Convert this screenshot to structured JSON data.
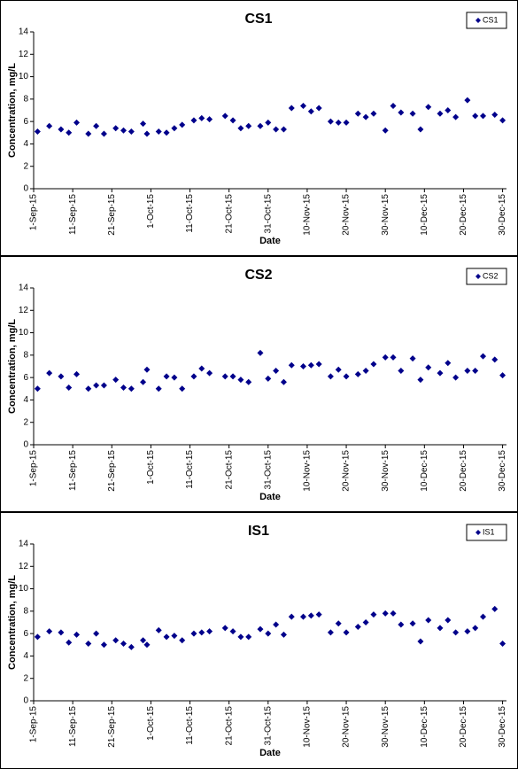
{
  "chart_data": [
    {
      "type": "scatter",
      "title": "CS1",
      "x_label": "Date",
      "y_label": "Concentration, mg/L",
      "legend": "upper right",
      "x": [
        "2015-09-02",
        "2015-09-05",
        "2015-09-08",
        "2015-09-10",
        "2015-09-12",
        "2015-09-15",
        "2015-09-17",
        "2015-09-19",
        "2015-09-22",
        "2015-09-24",
        "2015-09-26",
        "2015-09-29",
        "2015-09-30",
        "2015-10-03",
        "2015-10-05",
        "2015-10-07",
        "2015-10-09",
        "2015-10-12",
        "2015-10-14",
        "2015-10-16",
        "2015-10-20",
        "2015-10-22",
        "2015-10-24",
        "2015-10-26",
        "2015-10-29",
        "2015-10-31",
        "2015-11-02",
        "2015-11-04",
        "2015-11-06",
        "2015-11-09",
        "2015-11-11",
        "2015-11-13",
        "2015-11-16",
        "2015-11-18",
        "2015-11-20",
        "2015-11-23",
        "2015-11-25",
        "2015-11-27",
        "2015-11-30",
        "2015-12-02",
        "2015-12-04",
        "2015-12-07",
        "2015-12-09",
        "2015-12-11",
        "2015-12-14",
        "2015-12-16",
        "2015-12-18",
        "2015-12-21",
        "2015-12-23",
        "2015-12-25",
        "2015-12-28",
        "2015-12-30"
      ],
      "series": [
        {
          "name": "CS1",
          "color": "#00008b",
          "values": [
            5.1,
            5.6,
            5.3,
            5.0,
            5.9,
            4.9,
            5.6,
            4.9,
            5.4,
            5.2,
            5.1,
            5.8,
            4.9,
            5.1,
            5.0,
            5.4,
            5.7,
            6.1,
            6.3,
            6.2,
            6.5,
            6.1,
            5.4,
            5.6,
            5.6,
            5.9,
            5.3,
            5.3,
            7.2,
            7.4,
            6.9,
            7.2,
            6.0,
            5.9,
            5.9,
            6.7,
            6.4,
            6.7,
            5.2,
            7.4,
            6.8,
            6.7,
            5.3,
            7.3,
            6.7,
            7.0,
            6.4,
            7.9,
            6.5,
            6.5,
            6.6,
            6.1
          ]
        }
      ],
      "xlim": [
        "2015-09-01",
        "2015-12-31"
      ],
      "xticks": [
        {
          "value": "2015-09-01",
          "label": "1-Sep-15"
        },
        {
          "value": "2015-09-11",
          "label": "11-Sep-15"
        },
        {
          "value": "2015-09-21",
          "label": "21-Sep-15"
        },
        {
          "value": "2015-10-01",
          "label": "1-Oct-15"
        },
        {
          "value": "2015-10-11",
          "label": "11-Oct-15"
        },
        {
          "value": "2015-10-21",
          "label": "21-Oct-15"
        },
        {
          "value": "2015-10-31",
          "label": "31-Oct-15"
        },
        {
          "value": "2015-11-10",
          "label": "10-Nov-15"
        },
        {
          "value": "2015-11-20",
          "label": "20-Nov-15"
        },
        {
          "value": "2015-11-30",
          "label": "30-Nov-15"
        },
        {
          "value": "2015-12-10",
          "label": "10-Dec-15"
        },
        {
          "value": "2015-12-20",
          "label": "20-Dec-15"
        },
        {
          "value": "2015-12-30",
          "label": "30-Dec-15"
        }
      ],
      "ylim": [
        0,
        14
      ],
      "yticks": [
        0,
        2,
        4,
        6,
        8,
        10,
        12,
        14
      ]
    },
    {
      "type": "scatter",
      "title": "CS2",
      "x_label": "Date",
      "y_label": "Concentration, mg/L",
      "legend": "upper right",
      "x": [
        "2015-09-02",
        "2015-09-05",
        "2015-09-08",
        "2015-09-10",
        "2015-09-12",
        "2015-09-15",
        "2015-09-17",
        "2015-09-19",
        "2015-09-22",
        "2015-09-24",
        "2015-09-26",
        "2015-09-29",
        "2015-09-30",
        "2015-10-03",
        "2015-10-05",
        "2015-10-07",
        "2015-10-09",
        "2015-10-12",
        "2015-10-14",
        "2015-10-16",
        "2015-10-20",
        "2015-10-22",
        "2015-10-24",
        "2015-10-26",
        "2015-10-29",
        "2015-10-31",
        "2015-11-02",
        "2015-11-04",
        "2015-11-06",
        "2015-11-09",
        "2015-11-11",
        "2015-11-13",
        "2015-11-16",
        "2015-11-18",
        "2015-11-20",
        "2015-11-23",
        "2015-11-25",
        "2015-11-27",
        "2015-11-30",
        "2015-12-02",
        "2015-12-04",
        "2015-12-07",
        "2015-12-09",
        "2015-12-11",
        "2015-12-14",
        "2015-12-16",
        "2015-12-18",
        "2015-12-21",
        "2015-12-23",
        "2015-12-25",
        "2015-12-28",
        "2015-12-30"
      ],
      "series": [
        {
          "name": "CS2",
          "color": "#00008b",
          "values": [
            5.0,
            6.4,
            6.1,
            5.1,
            6.3,
            5.0,
            5.3,
            5.3,
            5.8,
            5.1,
            5.0,
            5.6,
            6.7,
            5.0,
            6.1,
            6.0,
            5.0,
            6.1,
            6.8,
            6.4,
            6.1,
            6.1,
            5.8,
            5.6,
            8.2,
            5.9,
            6.6,
            5.6,
            7.1,
            7.0,
            7.1,
            7.2,
            6.1,
            6.7,
            6.1,
            6.3,
            6.6,
            7.2,
            7.8,
            7.8,
            6.6,
            7.7,
            5.8,
            6.9,
            6.4,
            7.3,
            6.0,
            6.6,
            6.6,
            7.9,
            7.6,
            6.2
          ]
        }
      ],
      "xlim": [
        "2015-09-01",
        "2015-12-31"
      ],
      "xticks": [
        {
          "value": "2015-09-01",
          "label": "1-Sep-15"
        },
        {
          "value": "2015-09-11",
          "label": "11-Sep-15"
        },
        {
          "value": "2015-09-21",
          "label": "21-Sep-15"
        },
        {
          "value": "2015-10-01",
          "label": "1-Oct-15"
        },
        {
          "value": "2015-10-11",
          "label": "11-Oct-15"
        },
        {
          "value": "2015-10-21",
          "label": "21-Oct-15"
        },
        {
          "value": "2015-10-31",
          "label": "31-Oct-15"
        },
        {
          "value": "2015-11-10",
          "label": "10-Nov-15"
        },
        {
          "value": "2015-11-20",
          "label": "20-Nov-15"
        },
        {
          "value": "2015-11-30",
          "label": "30-Nov-15"
        },
        {
          "value": "2015-12-10",
          "label": "10-Dec-15"
        },
        {
          "value": "2015-12-20",
          "label": "20-Dec-15"
        },
        {
          "value": "2015-12-30",
          "label": "30-Dec-15"
        }
      ],
      "ylim": [
        0,
        14
      ],
      "yticks": [
        0,
        2,
        4,
        6,
        8,
        10,
        12,
        14
      ]
    },
    {
      "type": "scatter",
      "title": "IS1",
      "x_label": "Date",
      "y_label": "Concentration, mg/L",
      "legend": "upper right",
      "x": [
        "2015-09-02",
        "2015-09-05",
        "2015-09-08",
        "2015-09-10",
        "2015-09-12",
        "2015-09-15",
        "2015-09-17",
        "2015-09-19",
        "2015-09-22",
        "2015-09-24",
        "2015-09-26",
        "2015-09-29",
        "2015-09-30",
        "2015-10-03",
        "2015-10-05",
        "2015-10-07",
        "2015-10-09",
        "2015-10-12",
        "2015-10-14",
        "2015-10-16",
        "2015-10-20",
        "2015-10-22",
        "2015-10-24",
        "2015-10-26",
        "2015-10-29",
        "2015-10-31",
        "2015-11-02",
        "2015-11-04",
        "2015-11-06",
        "2015-11-09",
        "2015-11-11",
        "2015-11-13",
        "2015-11-16",
        "2015-11-18",
        "2015-11-20",
        "2015-11-23",
        "2015-11-25",
        "2015-11-27",
        "2015-11-30",
        "2015-12-02",
        "2015-12-04",
        "2015-12-07",
        "2015-12-09",
        "2015-12-11",
        "2015-12-14",
        "2015-12-16",
        "2015-12-18",
        "2015-12-21",
        "2015-12-23",
        "2015-12-25",
        "2015-12-28",
        "2015-12-30"
      ],
      "series": [
        {
          "name": "IS1",
          "color": "#00008b",
          "values": [
            5.7,
            6.2,
            6.1,
            5.2,
            5.9,
            5.1,
            6.0,
            5.0,
            5.4,
            5.1,
            4.8,
            5.4,
            5.0,
            6.3,
            5.7,
            5.8,
            5.4,
            6.0,
            6.1,
            6.2,
            6.5,
            6.2,
            5.7,
            5.7,
            6.4,
            6.0,
            6.8,
            5.9,
            7.5,
            7.5,
            7.6,
            7.7,
            6.1,
            6.9,
            6.1,
            6.6,
            7.0,
            7.7,
            7.8,
            7.8,
            6.8,
            6.9,
            5.3,
            7.2,
            6.5,
            7.2,
            6.1,
            6.2,
            6.5,
            7.5,
            8.2,
            5.1
          ]
        }
      ],
      "xlim": [
        "2015-09-01",
        "2015-12-31"
      ],
      "xticks": [
        {
          "value": "2015-09-01",
          "label": "1-Sep-15"
        },
        {
          "value": "2015-09-11",
          "label": "11-Sep-15"
        },
        {
          "value": "2015-09-21",
          "label": "21-Sep-15"
        },
        {
          "value": "2015-10-01",
          "label": "1-Oct-15"
        },
        {
          "value": "2015-10-11",
          "label": "11-Oct-15"
        },
        {
          "value": "2015-10-21",
          "label": "21-Oct-15"
        },
        {
          "value": "2015-10-31",
          "label": "31-Oct-15"
        },
        {
          "value": "2015-11-10",
          "label": "10-Nov-15"
        },
        {
          "value": "2015-11-20",
          "label": "20-Nov-15"
        },
        {
          "value": "2015-11-30",
          "label": "30-Nov-15"
        },
        {
          "value": "2015-12-10",
          "label": "10-Dec-15"
        },
        {
          "value": "2015-12-20",
          "label": "20-Dec-15"
        },
        {
          "value": "2015-12-30",
          "label": "30-Dec-15"
        }
      ],
      "ylim": [
        0,
        14
      ],
      "yticks": [
        0,
        2,
        4,
        6,
        8,
        10,
        12,
        14
      ]
    }
  ]
}
